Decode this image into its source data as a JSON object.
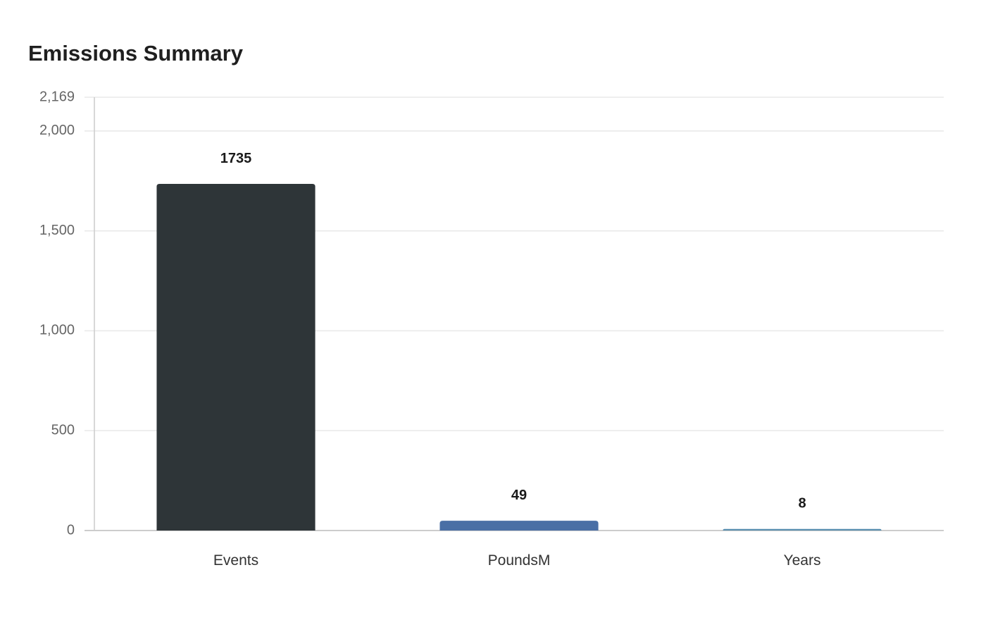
{
  "chart_data": {
    "type": "bar",
    "title": "Emissions Summary",
    "xlabel": "",
    "ylabel": "",
    "categories": [
      "Events",
      "PoundsM",
      "Years"
    ],
    "values": [
      1735,
      49,
      8
    ],
    "data_labels": [
      "1735",
      "49",
      "8"
    ],
    "bar_colors": [
      "#2e3538",
      "#4a6fa5",
      "#5a8fb0"
    ],
    "ylim": [
      0,
      2169
    ],
    "yticks": [
      0,
      500,
      1000,
      1500,
      2000,
      2169
    ],
    "ytick_labels": [
      "0",
      "500",
      "1,000",
      "1,500",
      "2,000",
      "2,169"
    ],
    "grid": true,
    "legend": "none"
  },
  "colors": {
    "grid": "#e8e8e8",
    "axis": "#cccccc"
  }
}
